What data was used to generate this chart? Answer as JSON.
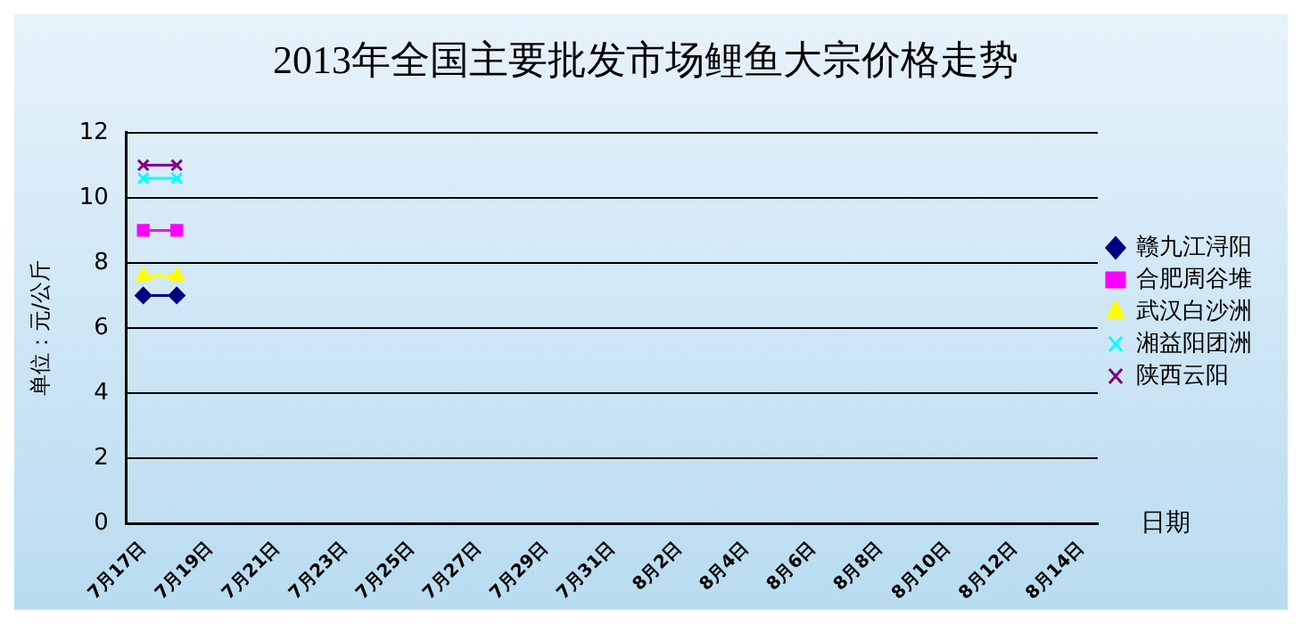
{
  "chart_data": {
    "type": "line",
    "title": "2013年全国主要批发市场鲤鱼大宗价格走势",
    "xlabel": "日期",
    "ylabel": "单位：元/公斤",
    "categories": [
      "7月17日",
      null,
      "7月19日",
      null,
      "7月21日",
      null,
      "7月23日",
      null,
      "7月25日",
      null,
      "7月27日",
      null,
      "7月29日",
      null,
      "7月31日",
      null,
      "8月2日",
      null,
      "8月4日",
      null,
      "8月6日",
      null,
      "8月8日",
      null,
      "8月10日",
      null,
      "8月12日",
      null,
      "8月14日"
    ],
    "series": [
      {
        "name": "赣九江浔阳",
        "color": "#000080",
        "marker": "diamond",
        "values": [
          7,
          7,
          null,
          null,
          null,
          null,
          null,
          null,
          null,
          null,
          null,
          null,
          null,
          null,
          null,
          null,
          null,
          null,
          null,
          null,
          null,
          null,
          null,
          null,
          null,
          null,
          null,
          null,
          null
        ]
      },
      {
        "name": "合肥周谷堆",
        "color": "#ff00ff",
        "marker": "square",
        "values": [
          9,
          9,
          null,
          null,
          null,
          null,
          null,
          null,
          null,
          null,
          null,
          null,
          null,
          null,
          null,
          null,
          null,
          null,
          null,
          null,
          null,
          null,
          null,
          null,
          null,
          null,
          null,
          null,
          null
        ]
      },
      {
        "name": "武汉白沙洲",
        "color": "#ffff00",
        "marker": "triangle",
        "values": [
          7.6,
          7.6,
          null,
          null,
          null,
          null,
          null,
          null,
          null,
          null,
          null,
          null,
          null,
          null,
          null,
          null,
          null,
          null,
          null,
          null,
          null,
          null,
          null,
          null,
          null,
          null,
          null,
          null,
          null
        ]
      },
      {
        "name": "湘益阳团洲",
        "color": "#00ffff",
        "marker": "cross",
        "values": [
          10.6,
          10.6,
          null,
          null,
          null,
          null,
          null,
          null,
          null,
          null,
          null,
          null,
          null,
          null,
          null,
          null,
          null,
          null,
          null,
          null,
          null,
          null,
          null,
          null,
          null,
          null,
          null,
          null,
          null
        ]
      },
      {
        "name": "陕西云阳",
        "color": "#800080",
        "marker": "cross",
        "values": [
          11,
          11,
          null,
          null,
          null,
          null,
          null,
          null,
          null,
          null,
          null,
          null,
          null,
          null,
          null,
          null,
          null,
          null,
          null,
          null,
          null,
          null,
          null,
          null,
          null,
          null,
          null,
          null,
          null
        ]
      }
    ],
    "ylim": [
      0,
      12
    ],
    "yticks": [
      0,
      2,
      4,
      6,
      8,
      10,
      12
    ],
    "grid": "y",
    "legend": "right",
    "line_style": "solid"
  }
}
